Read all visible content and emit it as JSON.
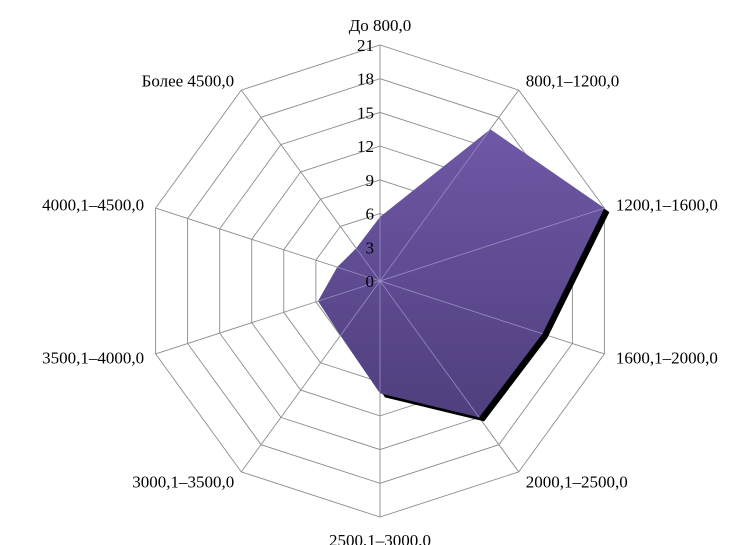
{
  "chart_data": {
    "type": "radar",
    "title": "",
    "categories": [
      "До 800,0",
      "800,1–1200,0",
      "1200,1–1600,0",
      "1600,1–2000,0",
      "2000,1–2500,0",
      "2500,1–3000,0",
      "3000,1–3500,0",
      "3500,1–4000,0",
      "4000,1–4500,0",
      "Более 4500,0"
    ],
    "axis": {
      "min": 0,
      "max": 21,
      "major_unit": 3,
      "tick_labels": [
        "0",
        "3",
        "6",
        "9",
        "12",
        "15",
        "18",
        "21"
      ]
    },
    "series": [
      {
        "name": "",
        "values": [
          5.7,
          16.7,
          21.0,
          15.2,
          15.0,
          10.0,
          6.0,
          5.8,
          4.0,
          3.6
        ],
        "fill_color": "#6f58a6",
        "fill_color_dark": "#4f3f7d",
        "shadow_color": "#000000"
      }
    ],
    "grid": true,
    "legend": false
  }
}
